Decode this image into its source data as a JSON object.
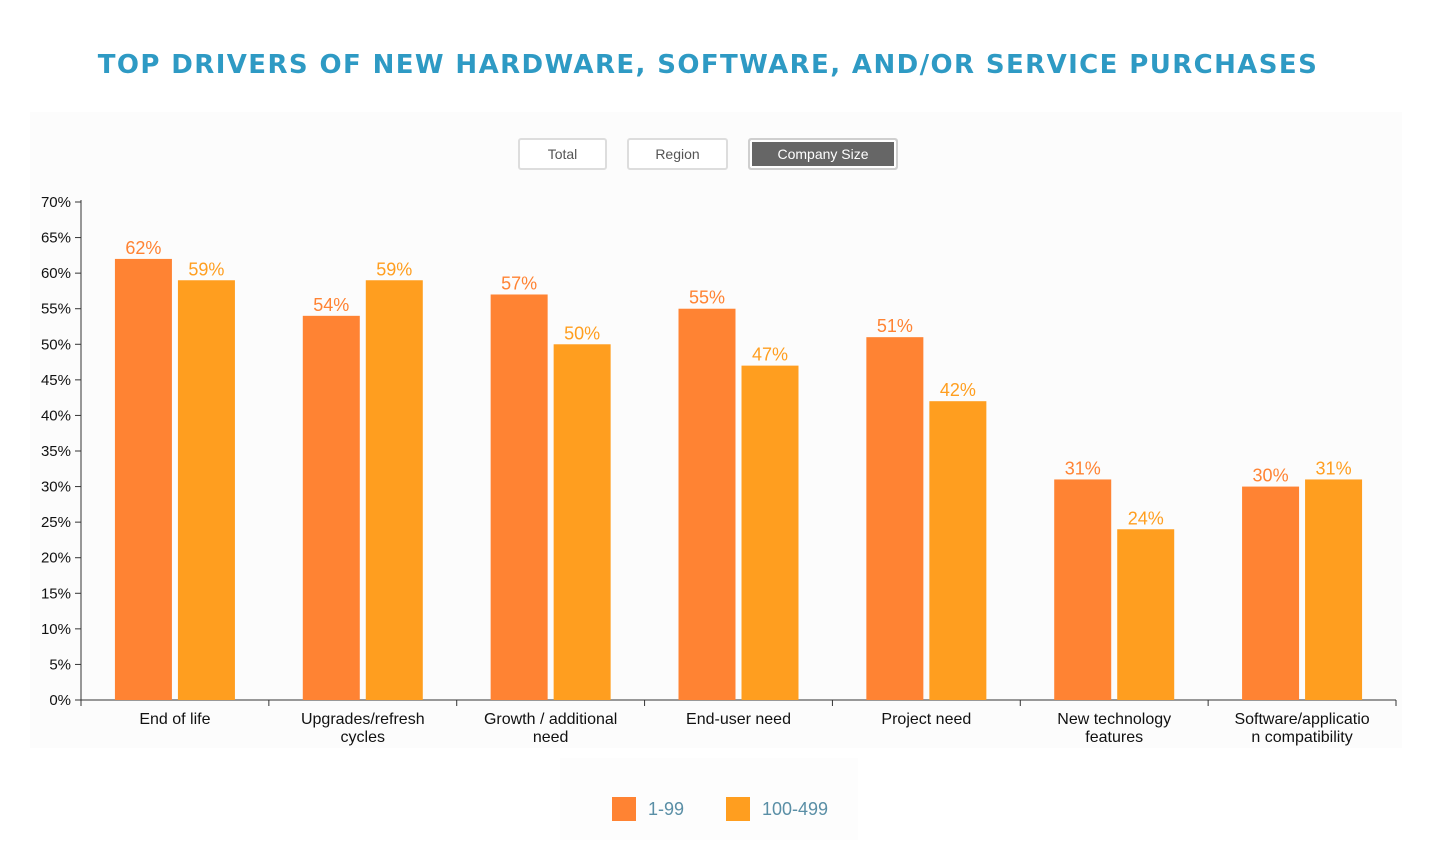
{
  "title": "TOP DRIVERS OF NEW HARDWARE, SOFTWARE, AND/OR SERVICE PURCHASES",
  "tabs": [
    {
      "label": "Total",
      "active": false
    },
    {
      "label": "Region",
      "active": false
    },
    {
      "label": "Company Size",
      "active": true
    }
  ],
  "colors": {
    "title": "#2e9ac4",
    "series1": "#ff8333",
    "series2": "#ff9e1f"
  },
  "chart_data": {
    "type": "bar",
    "title": "TOP DRIVERS OF NEW HARDWARE, SOFTWARE, AND/OR SERVICE PURCHASES",
    "xlabel": "",
    "ylabel": "",
    "ylim": [
      0,
      70
    ],
    "y_ticks": [
      "0%",
      "5%",
      "10%",
      "15%",
      "20%",
      "25%",
      "30%",
      "35%",
      "40%",
      "45%",
      "50%",
      "55%",
      "60%",
      "65%",
      "70%"
    ],
    "y_tick_values": [
      0,
      5,
      10,
      15,
      20,
      25,
      30,
      35,
      40,
      45,
      50,
      55,
      60,
      65,
      70
    ],
    "grid": false,
    "legend_position": "bottom",
    "categories": [
      [
        "End of life"
      ],
      [
        "Upgrades/refresh",
        "cycles"
      ],
      [
        "Growth / additional",
        "need"
      ],
      [
        "End-user need"
      ],
      [
        "Project need"
      ],
      [
        "New technology",
        "features"
      ],
      [
        "Software/applicatio",
        "n compatibility"
      ]
    ],
    "series": [
      {
        "name": "1-99",
        "color": "#ff8333",
        "values": [
          62,
          54,
          57,
          55,
          51,
          31,
          30
        ],
        "labels": [
          "62%",
          "54%",
          "57%",
          "55%",
          "51%",
          "31%",
          "30%"
        ]
      },
      {
        "name": "100-499",
        "color": "#ff9e1f",
        "values": [
          59,
          59,
          50,
          47,
          42,
          24,
          31
        ],
        "labels": [
          "59%",
          "59%",
          "50%",
          "47%",
          "42%",
          "24%",
          "31%"
        ]
      }
    ]
  }
}
